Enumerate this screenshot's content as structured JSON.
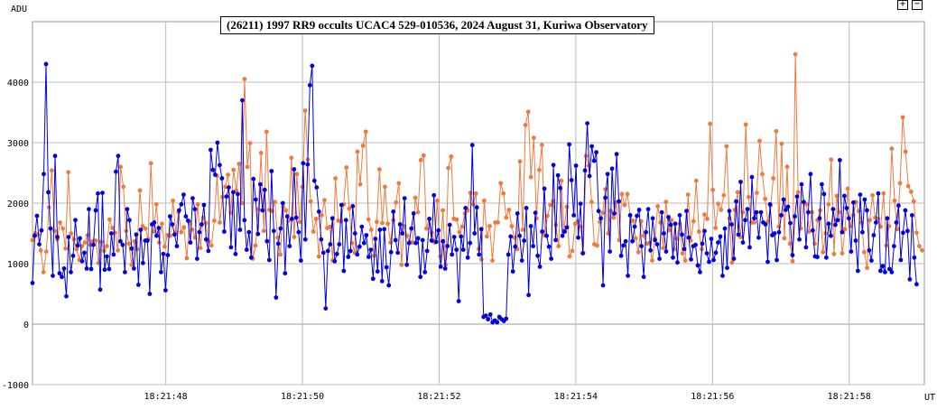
{
  "toolbar": {
    "zoom_in_label": "+",
    "zoom_out_label": "−"
  },
  "chart_data": {
    "type": "line",
    "title": "(26211) 1997 RR9 occults UCAC4 529-010536, 2024 August 31, Kuriwa Observatory",
    "ylabel": "ADU",
    "xlabel": "UT",
    "ylim": [
      -1000,
      5000
    ],
    "yticks": [
      4000,
      3000,
      2000,
      1000,
      0,
      -1000
    ],
    "xtick_labels": [
      "18:21:48",
      "18:21:50",
      "18:21:52",
      "18:21:54",
      "18:21:56",
      "18:21:58"
    ],
    "xtick_values": [
      48,
      50,
      52,
      54,
      56,
      58
    ],
    "xlim": [
      46.05,
      59.1
    ],
    "grid": true,
    "colors": {
      "target": "#0000dd",
      "comparison": "#f07a3c",
      "grid": "#bbbbbb",
      "zero_line": "#999999"
    },
    "series": [
      {
        "key": "target",
        "x_start": 46.05,
        "x_step": 0.033,
        "values": [
          680,
          1460,
          1790,
          1320,
          1550,
          2480,
          4300,
          2180,
          1580,
          800,
          2780,
          1440,
          840,
          780,
          920,
          460,
          1440,
          860,
          1130,
          1720,
          1300,
          1420,
          1040,
          1180,
          920,
          1900,
          910,
          1310,
          1880,
          2160,
          570,
          2170,
          900,
          1120,
          910,
          1500,
          1150,
          2520,
          2780,
          1370,
          1310,
          860,
          1900,
          1720,
          1250,
          920,
          1480,
          650,
          1560,
          1010,
          1380,
          1380,
          500,
          1650,
          1680,
          1460,
          1590,
          860,
          1160,
          560,
          1140,
          1780,
          1650,
          1480,
          1290,
          1880,
          1980,
          2140,
          1780,
          1710,
          1350,
          2080,
          1900,
          1080,
          1520,
          1650,
          1970,
          1400,
          1210,
          2880,
          2550,
          2470,
          3000,
          2630,
          2410,
          1530,
          2110,
          2260,
          1270,
          2180,
          1160,
          2150,
          1560,
          3700,
          1720,
          1230,
          1520,
          1100,
          2400,
          2060,
          1490,
          2310,
          1880,
          2220,
          1370,
          1060,
          2530,
          1540,
          440,
          1330,
          1580,
          2000,
          840,
          1780,
          1290,
          1740,
          2560,
          1760,
          1520,
          1050,
          2660,
          1400,
          2640,
          3950,
          4270,
          2370,
          2260,
          1860,
          1400,
          1180,
          260,
          1210,
          1320,
          1750,
          1040,
          1160,
          1320,
          1970,
          880,
          1720,
          1110,
          1210,
          1950,
          1500,
          1150,
          1280,
          1610,
          1340,
          1470,
          1110,
          1230,
          750,
          1410,
          870,
          1560,
          710,
          1570,
          940,
          640,
          1190,
          1860,
          1390,
          1180,
          1650,
          1500,
          2080,
          980,
          1340,
          1580,
          1830,
          1340,
          1420,
          780,
          1390,
          860,
          1210,
          1740,
          1380,
          2130,
          1360,
          1550,
          950,
          1370,
          920,
          1290,
          1640,
          1150,
          1440,
          1230,
          380,
          1450,
          1230,
          1920,
          1100,
          1340,
          2960,
          1500,
          1930,
          1150,
          1570,
          120,
          140,
          80,
          160,
          30,
          60,
          30,
          120,
          80,
          50,
          90,
          1150,
          1450,
          870,
          1280,
          1830,
          1460,
          1050,
          1380,
          1920,
          480,
          1620,
          1290,
          1840,
          1130,
          950,
          1530,
          2240,
          1460,
          1280,
          1080,
          2630,
          1390,
          2460,
          2250,
          1460,
          1530,
          1600,
          2970,
          2380,
          1800,
          2620,
          1430,
          1990,
          1170,
          2540,
          3320,
          2450,
          2940,
          2700,
          2840,
          1870,
          1750,
          640,
          2090,
          2480,
          1200,
          2570,
          1830,
          2810,
          2030,
          1130,
          1300,
          1370,
          800,
          1800,
          1370,
          1610,
          1790,
          1890,
          1290,
          780,
          1520,
          1900,
          1220,
          1750,
          1390,
          1320,
          1080,
          1850,
          1500,
          1200,
          1770,
          1640,
          1100,
          1660,
          1020,
          1800,
          1480,
          1240,
          1870,
          1430,
          1070,
          1290,
          1310,
          970,
          860,
          1330,
          1540,
          1170,
          1030,
          1410,
          1060,
          1180,
          1350,
          1450,
          800,
          1580,
          930,
          1870,
          1650,
          1080,
          2030,
          1480,
          2350,
          1350,
          1720,
          1900,
          1270,
          2430,
          1750,
          1850,
          1430,
          1850,
          1680,
          1650,
          1030,
          1980,
          1470,
          1500,
          1060,
          1520,
          1800,
          2060,
          1890,
          1940,
          1670,
          1140,
          1780,
          2110,
          1400,
          2310,
          2020,
          1270,
          1850,
          2480,
          1550,
          1120,
          1110,
          1750,
          2310,
          2150,
          1100,
          1660,
          1460,
          1900,
          1640,
          1720,
          2710,
          1520,
          2120,
          1920,
          1750,
          1200,
          2010,
          1380,
          880,
          2140,
          1520,
          2060,
          1880,
          1220,
          1050,
          1470,
          1680,
          2160,
          880,
          960,
          860,
          1750,
          910,
          860,
          1290,
          1680,
          1960,
          1060,
          1510,
          1880,
          1540,
          740,
          1800,
          1100,
          660
        ]
      },
      {
        "key": "comparison",
        "x_start": 46.05,
        "x_step": 0.0403,
        "values": [
          1390,
          1500,
          1480,
          1220,
          860,
          1200,
          1930,
          2540,
          1540,
          1400,
          1680,
          1580,
          1250,
          2510,
          1500,
          1400,
          1240,
          1060,
          1290,
          1350,
          1470,
          1310,
          1370,
          1380,
          1010,
          1360,
          1210,
          1290,
          1730,
          1590,
          1510,
          1220,
          2600,
          2270,
          1540,
          1330,
          980,
          1370,
          1240,
          2210,
          1620,
          1580,
          1410,
          2660,
          1530,
          1980,
          1350,
          1660,
          1280,
          1470,
          1460,
          2040,
          1520,
          1850,
          1520,
          1600,
          1090,
          1690,
          1560,
          1430,
          1980,
          1260,
          1760,
          1670,
          1370,
          1300,
          1710,
          2450,
          1680,
          2100,
          2270,
          2470,
          1840,
          2550,
          2210,
          2650,
          2000,
          4050,
          2600,
          2990,
          1080,
          1300,
          1900,
          2830,
          1540,
          3180,
          1890,
          1870,
          2020,
          1430,
          1150,
          1940,
          1880,
          1710,
          2750,
          1440,
          2480,
          1690,
          2270,
          3530,
          2720,
          2030,
          1530,
          1740,
          1120,
          1800,
          2050,
          1590,
          1610,
          1050,
          2410,
          1710,
          1700,
          1980,
          2590,
          1910,
          1340,
          1180,
          2850,
          2310,
          2950,
          3180,
          1730,
          1560,
          1130,
          1690,
          2560,
          1670,
          2270,
          1660,
          1350,
          1720,
          2010,
          2330,
          980,
          1620,
          1460,
          1360,
          1350,
          2090,
          1850,
          2710,
          2790,
          1580,
          1740,
          1510,
          1350,
          2040,
          1120,
          1880,
          980,
          2580,
          2770,
          1740,
          1730,
          1520,
          1610,
          1830,
          1880,
          2170,
          1980,
          2160,
          1240,
          1070,
          2040,
          1450,
          1620,
          1050,
          1680,
          1680,
          2330,
          2160,
          1760,
          1890,
          1620,
          1430,
          1240,
          2690,
          1560,
          3290,
          3510,
          2430,
          3080,
          1750,
          2550,
          2960,
          1470,
          1790,
          1970,
          2030,
          1640,
          1290,
          2370,
          1550,
          1940,
          1120,
          1210,
          1660,
          1700,
          1610,
          1180,
          2780,
          2620,
          2020,
          1320,
          1300,
          1690,
          1840,
          2230,
          1500,
          1870,
          1760,
          2010,
          1390,
          2150,
          1970,
          2150,
          1800,
          1710,
          1420,
          1190,
          1700,
          1460,
          1330,
          1340,
          1050,
          1420,
          1950,
          1680,
          1260,
          2020,
          1550,
          1720,
          1240,
          1410,
          1660,
          1170,
          1050,
          2140,
          1380,
          1700,
          2370,
          1530,
          1240,
          1810,
          1740,
          3310,
          2220,
          1590,
          1990,
          1890,
          2130,
          2940,
          1750,
          1020,
          1890,
          2180,
          1440,
          1850,
          3300,
          2100,
          1680,
          1680,
          2170,
          3030,
          2480,
          2070,
          1700,
          1960,
          2410,
          3190,
          1610,
          2980,
          1420,
          2600,
          1330,
          1040,
          4460,
          2180,
          1580,
          2010,
          1980,
          1530,
          1850,
          1330,
          1720,
          1880,
          1190,
          1500,
          1980,
          2720,
          1160,
          2120,
          1850,
          1170,
          1570,
          2240,
          1620,
          1800,
          2020,
          1870,
          1680,
          1190,
          930,
          1720,
          2130,
          1760,
          1740,
          1610,
          2160,
          1300,
          1620,
          2900,
          2040,
          1570,
          2330,
          3420,
          2850,
          2280,
          2190,
          2030,
          1510,
          1290,
          1220
        ]
      }
    ]
  }
}
